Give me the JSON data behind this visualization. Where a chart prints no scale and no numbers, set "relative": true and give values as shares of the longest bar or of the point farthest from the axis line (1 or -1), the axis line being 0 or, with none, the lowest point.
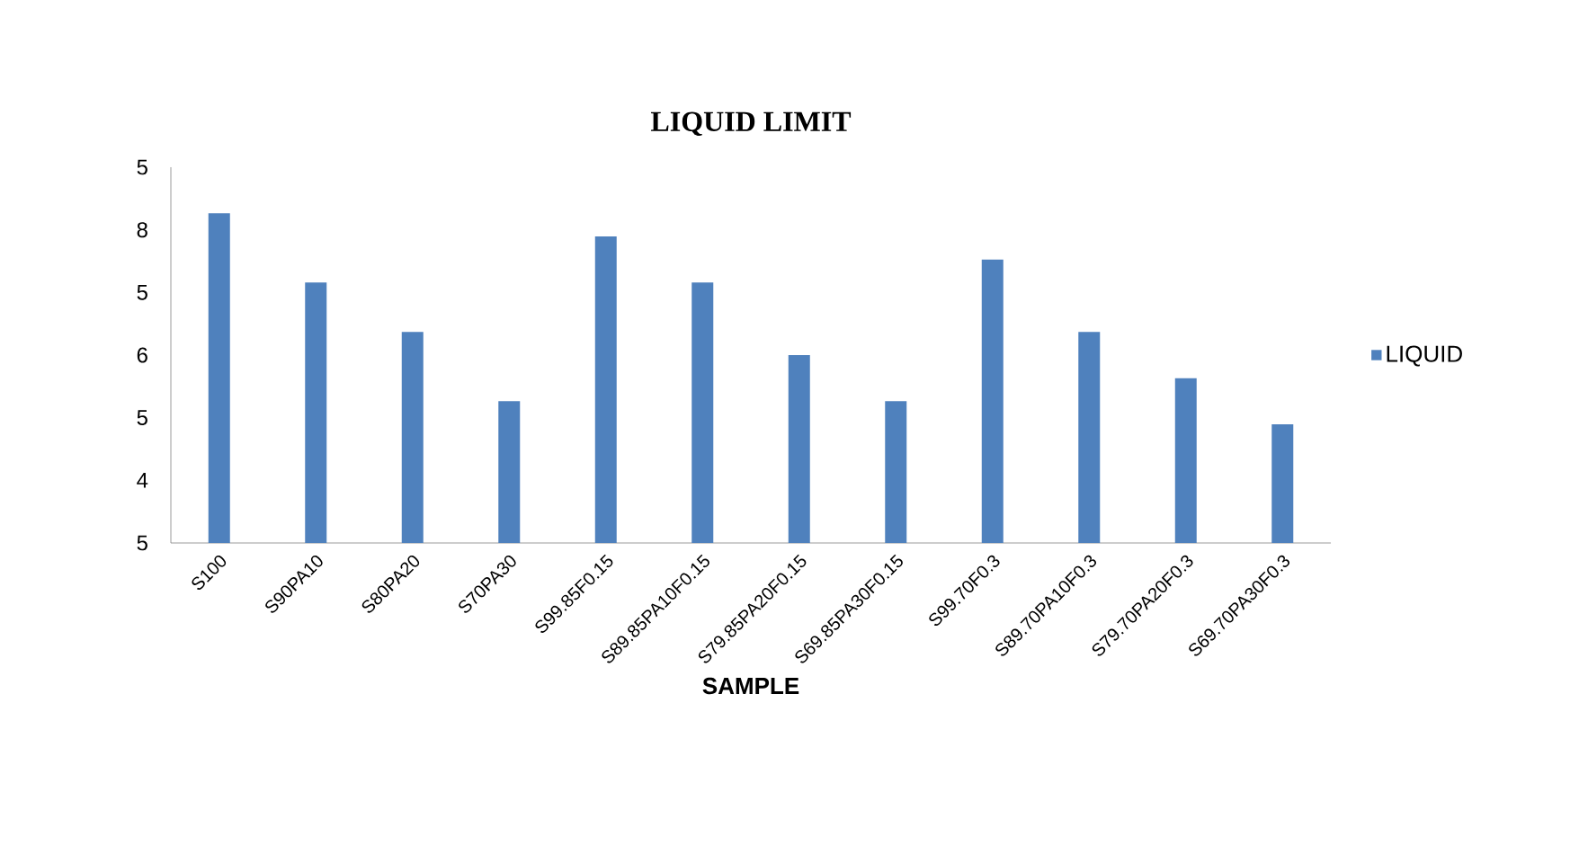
{
  "chart_data": {
    "type": "bar",
    "title": "LIQUID LIMIT",
    "xlabel": "SAMPLE",
    "relative": true,
    "categories": [
      "S100",
      "S90PA10",
      "S80PA20",
      "S70PA30",
      "S99.85F0.15",
      "S89.85PA10F0.15",
      "S79.85PA20F0.15",
      "S69.85PA30F0.15",
      "S99.70F0.3",
      "S89.70PA10F0.3",
      "S79.70PA20F0.3",
      "S69.70PA30F0.3"
    ],
    "series": [
      {
        "name": "LIQUID",
        "color": "#4f81bd",
        "values": [
          1,
          0.79,
          0.64,
          0.43,
          0.93,
          0.79,
          0.57,
          0.43,
          0.86,
          0.64,
          0.5,
          0.36
        ]
      }
    ],
    "annotations": [
      "5",
      "8",
      "5",
      "6",
      "5",
      "4",
      "5"
    ],
    "legend": "right"
  }
}
